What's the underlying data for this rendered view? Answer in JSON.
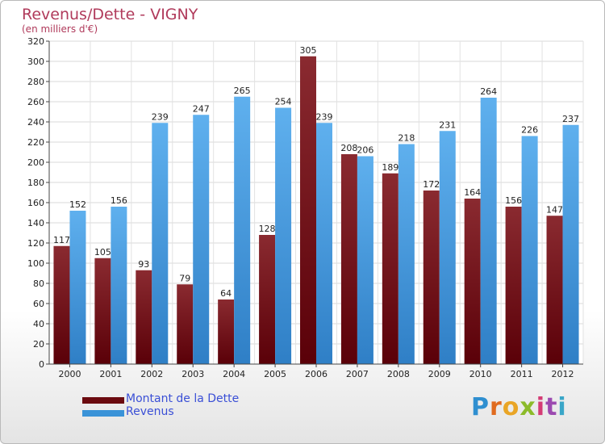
{
  "header": {
    "title": "Revenus/Dette - VIGNY",
    "subtitle": "(en milliers d'€)"
  },
  "legend": {
    "items": [
      {
        "label": "Montant de la Dette",
        "color": "#6b0a0f"
      },
      {
        "label": "Revenus",
        "color": "#3a93d8"
      }
    ]
  },
  "logo": {
    "letters": [
      {
        "ch": "P",
        "color": "#2f8fd0"
      },
      {
        "ch": "r",
        "color": "#e06b1f"
      },
      {
        "ch": "o",
        "color": "#e9a526"
      },
      {
        "ch": "x",
        "color": "#8cbb2a"
      },
      {
        "ch": "i",
        "color": "#d43c75"
      },
      {
        "ch": "t",
        "color": "#9c4ab0"
      },
      {
        "ch": "i",
        "color": "#3aa6c8"
      }
    ]
  },
  "chart_data": {
    "type": "bar",
    "categories": [
      "2000",
      "2001",
      "2002",
      "2003",
      "2004",
      "2005",
      "2006",
      "2007",
      "2008",
      "2009",
      "2010",
      "2011",
      "2012"
    ],
    "series": [
      {
        "name": "Montant de la Dette",
        "color": "#7a1a20",
        "values": [
          117,
          105,
          93,
          79,
          64,
          128,
          305,
          208,
          189,
          172,
          164,
          156,
          147
        ]
      },
      {
        "name": "Revenus",
        "color": "#4aa3e6",
        "values": [
          152,
          156,
          239,
          247,
          265,
          254,
          239,
          206,
          218,
          231,
          264,
          226,
          237
        ]
      }
    ],
    "yticks": [
      0,
      20,
      40,
      60,
      80,
      100,
      120,
      140,
      160,
      180,
      200,
      220,
      240,
      260,
      280,
      300,
      320
    ],
    "ylim": [
      0,
      320
    ],
    "grid": true
  }
}
